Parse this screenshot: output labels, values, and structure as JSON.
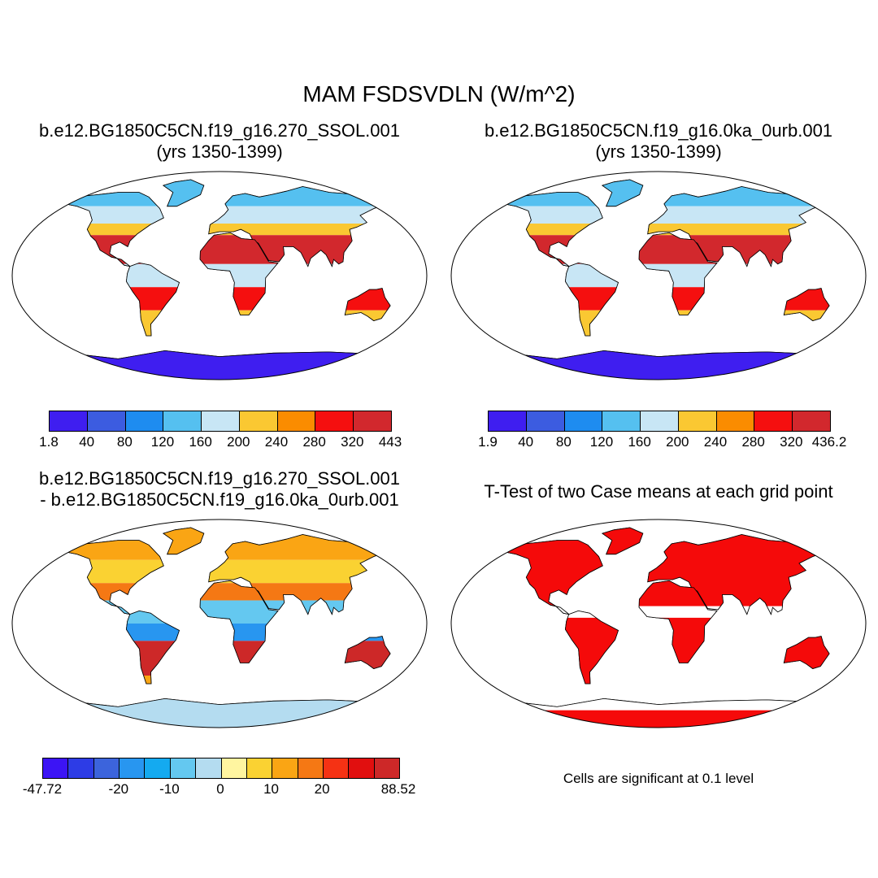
{
  "figure": {
    "title": "MAM FSDSVDLN (W/m^2)"
  },
  "panels": [
    {
      "id": "case1",
      "title_line1": "b.e12.BG1850C5CN.f19_g16.270_SSOL.001",
      "title_line2": "(yrs 1350-1399)",
      "colorbar": {
        "colors": [
          "#3f1ef0",
          "#3c5ce0",
          "#1e8cf0",
          "#55c0f0",
          "#c8e6f5",
          "#fac832",
          "#fa8c00",
          "#f50f0f",
          "#d2282d"
        ],
        "labels": [
          "1.8",
          "40",
          "80",
          "120",
          "160",
          "200",
          "240",
          "280",
          "320",
          "443"
        ]
      }
    },
    {
      "id": "case2",
      "title_line1": "b.e12.BG1850C5CN.f19_g16.0ka_0urb.001",
      "title_line2": "(yrs 1350-1399)",
      "colorbar": {
        "colors": [
          "#3f1ef0",
          "#3c5ce0",
          "#1e8cf0",
          "#55c0f0",
          "#c8e6f5",
          "#fac832",
          "#fa8c00",
          "#f50f0f",
          "#d2282d"
        ],
        "labels": [
          "1.9",
          "40",
          "80",
          "120",
          "160",
          "200",
          "240",
          "280",
          "320",
          "436.2"
        ]
      }
    },
    {
      "id": "difference",
      "title_line1": "b.e12.BG1850C5CN.f19_g16.270_SSOL.001",
      "title_line2": "- b.e12.BG1850C5CN.f19_g16.0ka_0urb.001",
      "colorbar": {
        "colors": [
          "#3c14f5",
          "#2d3ce6",
          "#3c64dc",
          "#2896f0",
          "#14aaf0",
          "#64c8f0",
          "#b4dcf0",
          "#fff5a0",
          "#fad232",
          "#faa514",
          "#f57814",
          "#f53214",
          "#e10f0f",
          "#cd2828"
        ],
        "labels": [
          "-47.72",
          "-20",
          "-10",
          "0",
          "10",
          "20",
          "88.52"
        ],
        "label_slots": [
          0,
          3,
          5,
          7,
          9,
          11,
          14
        ]
      }
    },
    {
      "id": "ttest",
      "title_line1": "T-Test of two Case means at each grid point",
      "note": "Cells are significant at 0.1 level",
      "significant_color": "#f50a0a"
    }
  ],
  "icons": [
    "world-map-robinson-icon"
  ]
}
